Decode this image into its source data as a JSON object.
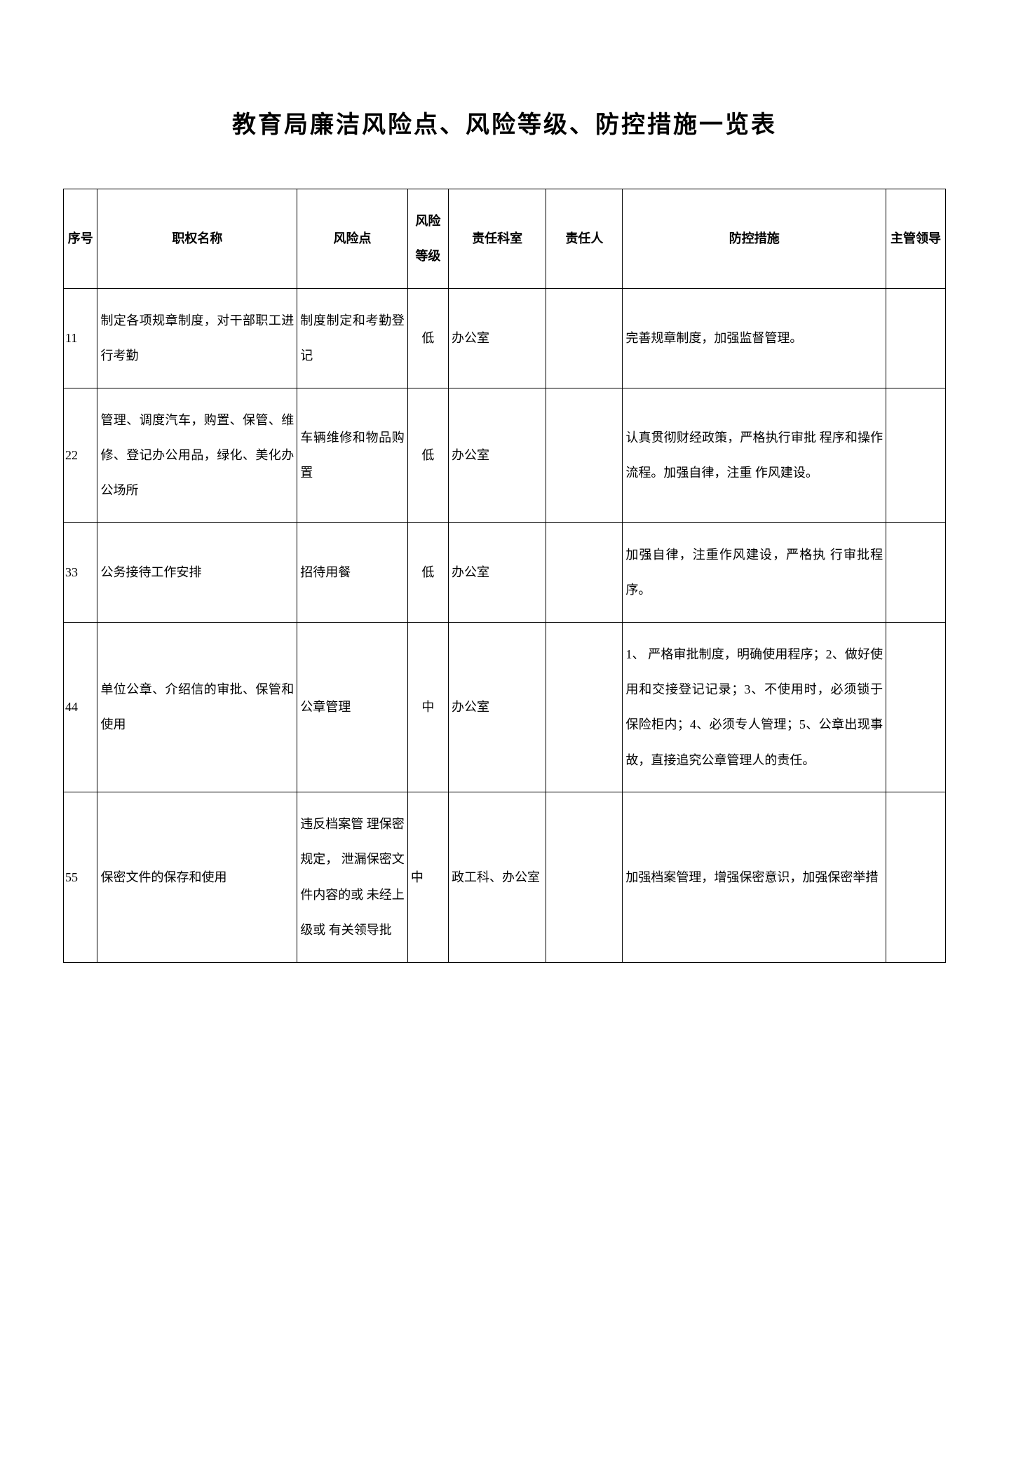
{
  "title": "教育局廉洁风险点、风险等级、防控措施一览表",
  "headers": {
    "seq": "序号",
    "name": "职权名称",
    "risk": "风险点",
    "level": "风险等级",
    "dept": "责任科室",
    "person": "责任人",
    "measure": "防控措施",
    "leader": "主管领导"
  },
  "rows": [
    {
      "seq": "11",
      "name": "制定各项规章制度，对干部职工进行考勤",
      "risk": "制度制定和考勤登记",
      "level": "低",
      "dept": "办公室",
      "person": "",
      "measure": "完善规章制度，加强监督管理。",
      "leader": ""
    },
    {
      "seq": "22",
      "name": "管理、调度汽车，购置、保管、维修、登记办公用品，绿化、美化办公场所",
      "risk": "车辆维修和物品购置",
      "level": "低",
      "dept": "办公室",
      "person": "",
      "measure": "认真贯彻财经政策，严格执行审批 程序和操作流程。加强自律，注重 作风建设。",
      "leader": ""
    },
    {
      "seq": "33",
      "name": "公务接待工作安排",
      "risk": "招待用餐",
      "level": "低",
      "dept": "办公室",
      "person": "",
      "measure": "加强自律，注重作风建设，严格执 行审批程序。",
      "leader": ""
    },
    {
      "seq": "44",
      "name": "单位公章、介绍信的审批、保管和使用",
      "risk": "公章管理",
      "level": "中",
      "dept": "办公室",
      "person": "",
      "measure": "1、 严格审批制度，明确使用程序；2、做好使用和交接登记记录；3、不使用时，必须锁于保险柜内；4、必须专人管理；5、公章出现事故，直接追究公章管理人的责任。",
      "leader": ""
    },
    {
      "seq": "55",
      "name": "保密文件的保存和使用",
      "risk": "违反档案管 理保密规定， 泄漏保密文 件内容的或 未经上级或 有关领导批",
      "level": "中",
      "dept": "政工科、办公室",
      "person": "",
      "measure": "加强档案管理，增强保密意识，加强保密举措",
      "leader": ""
    }
  ],
  "styles": {
    "title_fontsize": 34,
    "cell_fontsize": 18,
    "border_color": "#000000",
    "background_color": "#ffffff",
    "text_color": "#000000",
    "line_height": 2.8
  }
}
